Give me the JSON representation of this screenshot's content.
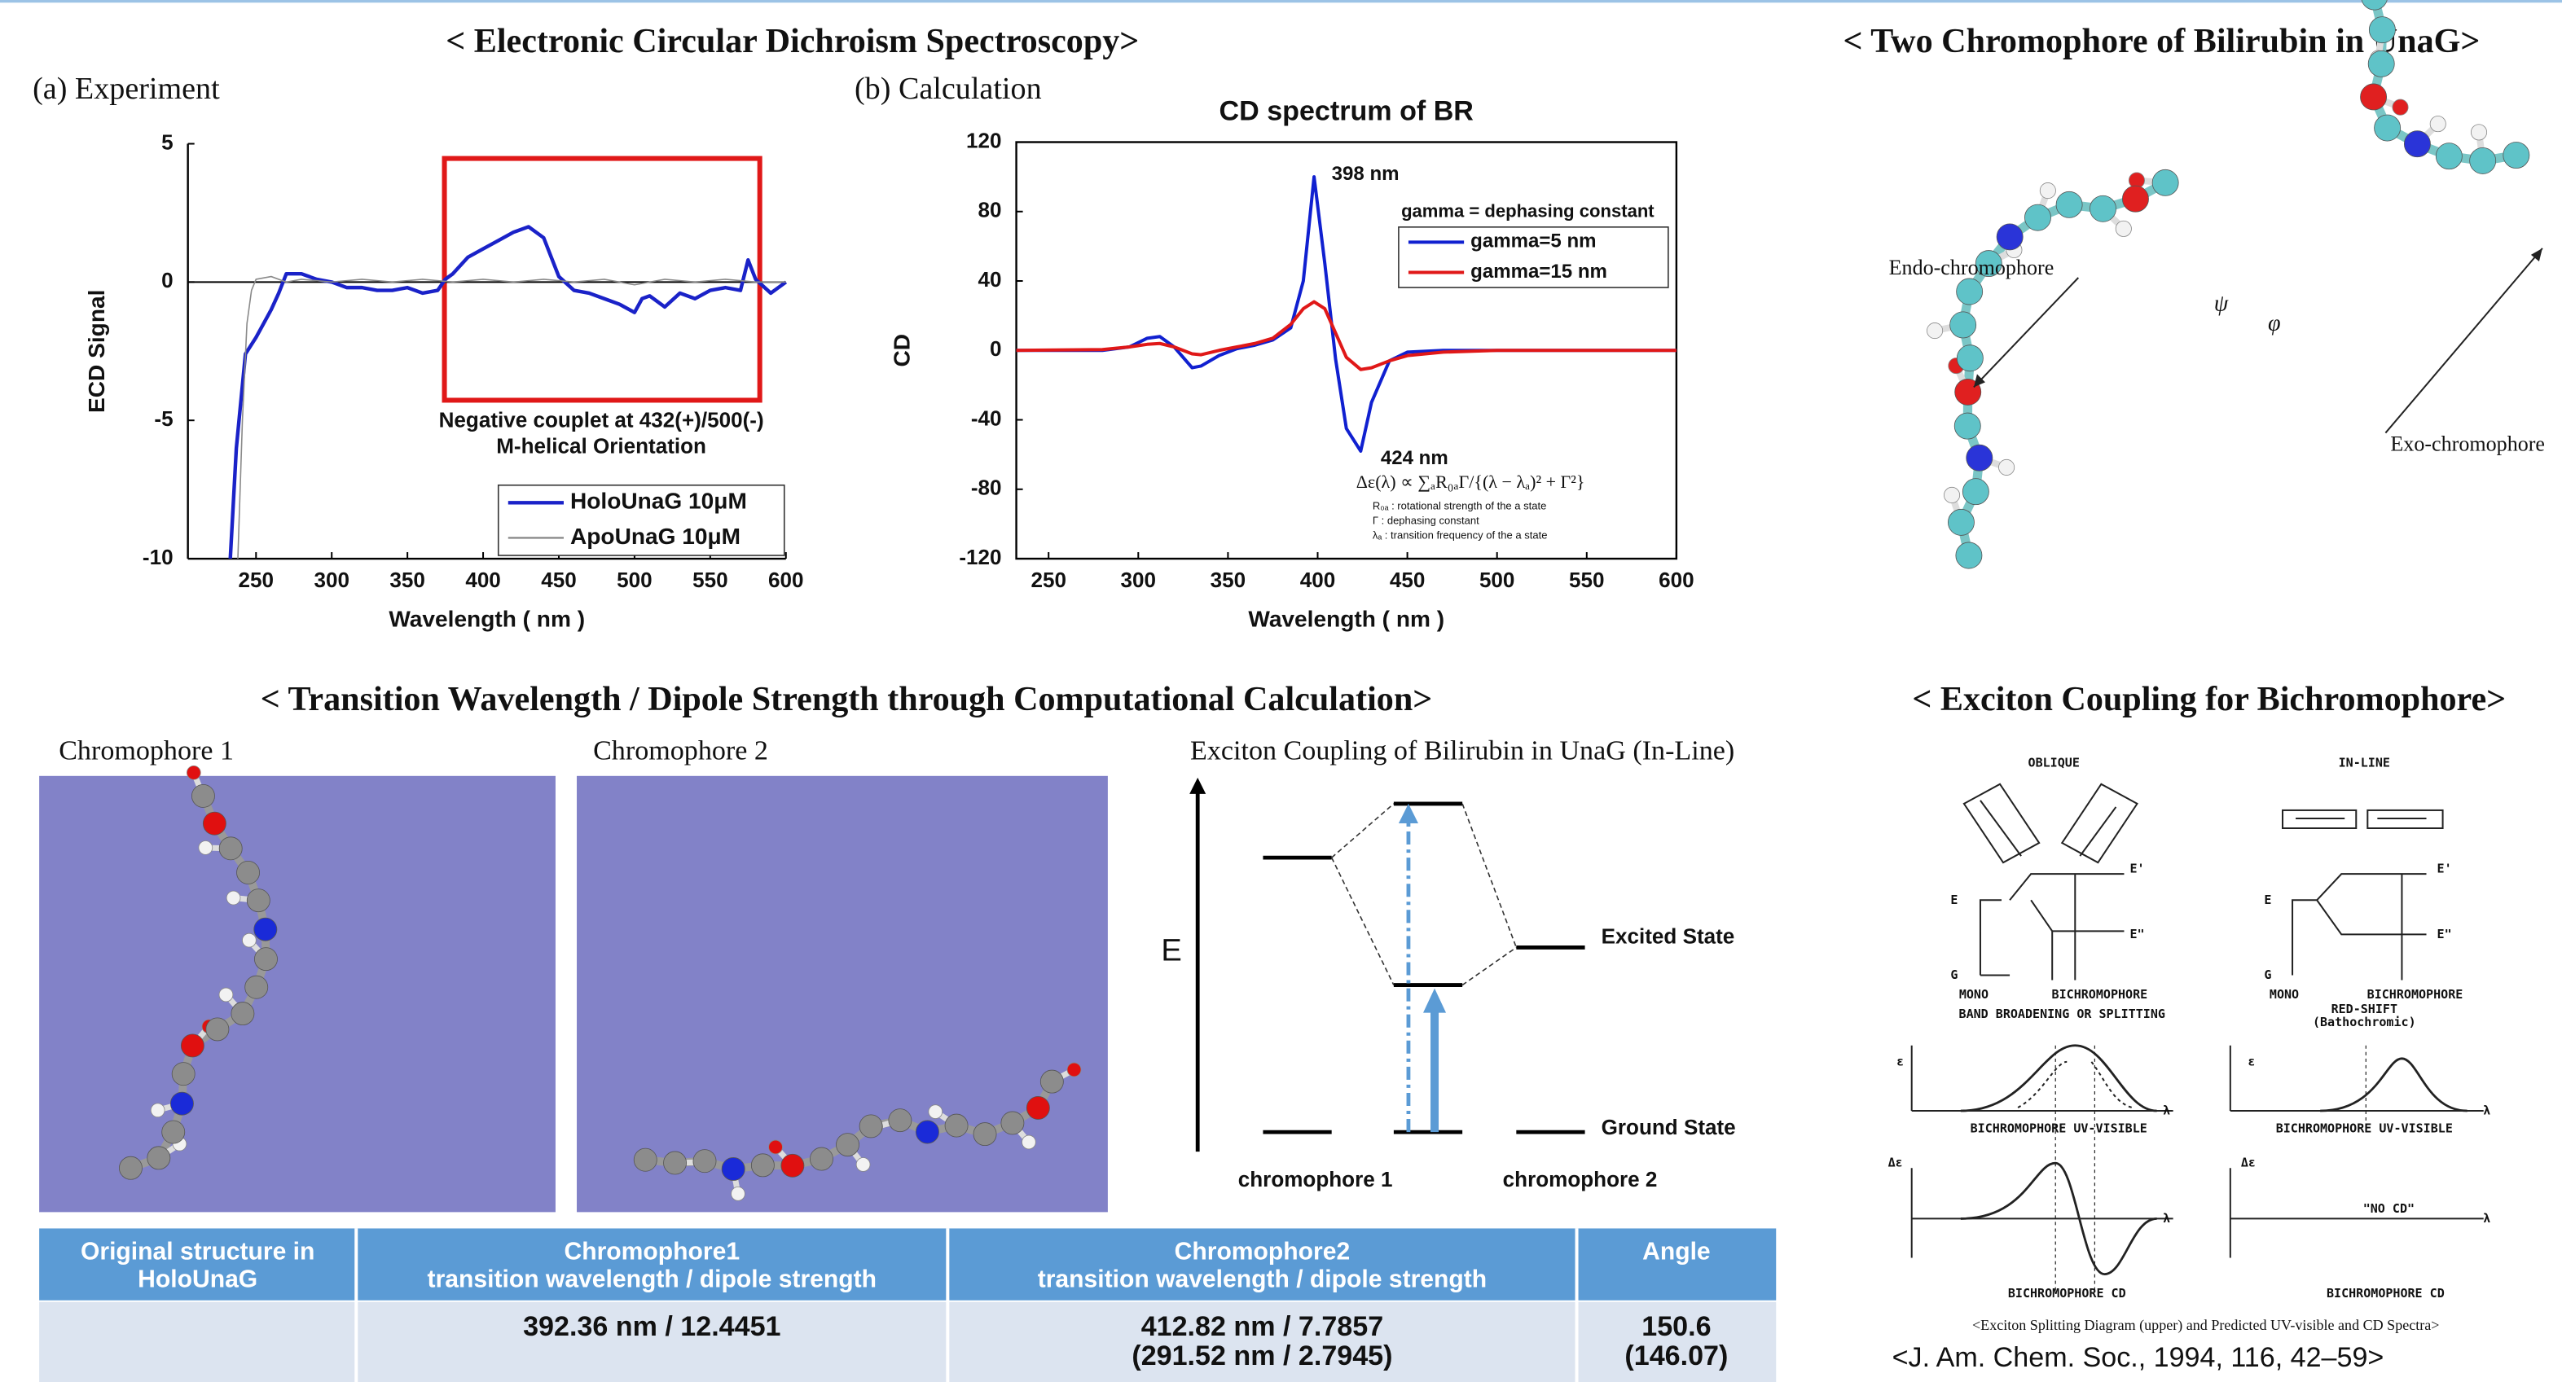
{
  "ecd": {
    "title": "< Electronic Circular Dichroism Spectroscopy>",
    "panel_a": "(a) Experiment",
    "panel_b": "(b) Calculation"
  },
  "chart_data": [
    {
      "type": "line",
      "xlabel": "Wavelength ( nm )",
      "ylabel": "ECD Signal",
      "xlim": [
        205,
        600
      ],
      "ylim": [
        -10,
        5
      ],
      "xticks": [
        250,
        300,
        350,
        400,
        450,
        500,
        550,
        600
      ],
      "yticks": [
        -10,
        -5,
        0,
        5
      ],
      "zero_line": true,
      "legend": "lower right",
      "annotations": [
        "Negative couplet at 432(+)/500(-)",
        "M-helical Orientation"
      ],
      "series": [
        {
          "name": "HoloUnaG 10μM",
          "color": "#1a22c8",
          "x": [
            233,
            237,
            243,
            250,
            255,
            260,
            265,
            270,
            280,
            290,
            300,
            310,
            320,
            330,
            340,
            350,
            360,
            370,
            375,
            380,
            390,
            400,
            410,
            420,
            430,
            440,
            445,
            450,
            460,
            470,
            480,
            490,
            500,
            505,
            510,
            520,
            530,
            540,
            550,
            560,
            570,
            575,
            580,
            590,
            600
          ],
          "values": [
            -10,
            -6,
            -2.6,
            -2.0,
            -1.5,
            -1.0,
            -0.4,
            0.3,
            0.3,
            0.1,
            0.0,
            -0.2,
            -0.2,
            -0.3,
            -0.3,
            -0.2,
            -0.4,
            -0.3,
            0.1,
            0.3,
            0.9,
            1.2,
            1.5,
            1.8,
            2.0,
            1.6,
            0.9,
            0.2,
            -0.3,
            -0.4,
            -0.6,
            -0.8,
            -1.1,
            -0.6,
            -0.5,
            -0.9,
            -0.4,
            -0.6,
            -0.3,
            -0.2,
            -0.3,
            0.8,
            0.1,
            -0.4,
            0.0
          ]
        },
        {
          "name": "ApoUnaG 10μM",
          "color": "#8a8a8a",
          "x": [
            238,
            241,
            244,
            247,
            250,
            260,
            270,
            280,
            300,
            320,
            340,
            360,
            380,
            400,
            420,
            440,
            460,
            480,
            500,
            520,
            540,
            560,
            580,
            600
          ],
          "values": [
            -10,
            -5,
            -1.5,
            -0.3,
            0.1,
            0.2,
            0.0,
            0.1,
            0.0,
            0.1,
            0.0,
            0.1,
            0.0,
            0.1,
            0.0,
            0.1,
            0.0,
            0.1,
            -0.1,
            0.1,
            0.0,
            0.1,
            0.0,
            0.0
          ]
        }
      ]
    },
    {
      "type": "line",
      "title": "CD spectrum of BR",
      "xlabel": "Wavelength ( nm )",
      "ylabel": "CD",
      "xlim": [
        232,
        600
      ],
      "ylim": [
        -120,
        120
      ],
      "xticks": [
        250,
        300,
        350,
        400,
        450,
        500,
        550,
        600
      ],
      "yticks": [
        -120,
        -80,
        -40,
        0,
        40,
        80,
        120
      ],
      "legend": "upper right",
      "legend_title": "gamma = dephasing constant",
      "annotations": [
        "398 nm",
        "424 nm"
      ],
      "formula": "Δε(λ) ∝ ∑ₐR₀ₐΓ/{(λ − λₐ)² + Γ²}",
      "notes": [
        "R₀ₐ : rotational strength of the a state",
        "Γ : dephasing constant",
        "λₐ : transition frequency of the a state"
      ],
      "series": [
        {
          "name": "gamma=5 nm",
          "color": "#1020d0",
          "x": [
            232,
            280,
            295,
            305,
            312,
            320,
            330,
            335,
            345,
            355,
            365,
            375,
            385,
            392,
            398,
            404,
            410,
            416,
            424,
            430,
            440,
            450,
            470,
            500,
            600
          ],
          "values": [
            0,
            0,
            2,
            7,
            8,
            2,
            -10,
            -9,
            -3,
            1,
            3,
            6,
            13,
            40,
            100,
            50,
            -5,
            -45,
            -58,
            -30,
            -6,
            -1,
            0,
            0,
            0
          ]
        },
        {
          "name": "gamma=15 nm",
          "color": "#e01818",
          "x": [
            232,
            280,
            295,
            305,
            312,
            320,
            330,
            335,
            345,
            355,
            365,
            375,
            385,
            392,
            398,
            404,
            410,
            416,
            424,
            430,
            440,
            450,
            470,
            500,
            600
          ],
          "values": [
            0,
            0.5,
            2,
            3.5,
            4,
            2,
            -2,
            -2.5,
            0,
            2,
            4,
            7,
            15,
            24,
            28,
            24,
            10,
            -4,
            -11,
            -10,
            -6,
            -3,
            -1,
            0,
            0
          ]
        }
      ]
    }
  ],
  "bilirubin": {
    "title": "< Two Chromophore of Bilirubin in UnaG>",
    "endo": "Endo-chromophore",
    "exo": "Exo-chromophore",
    "psi": "ψ",
    "phi": "φ"
  },
  "transition": {
    "title": "< Transition Wavelength / Dipole Strength through Computational Calculation>",
    "chromophore_1": "Chromophore 1",
    "chromophore_2": "Chromophore 2",
    "exciton_title": "Exciton Coupling of Bilirubin in UnaG (In-Line)",
    "energy_axis": "E",
    "excited_state": "Excited State",
    "ground_state": "Ground State",
    "level_1": "chromophore 1",
    "level_2": "chromophore 2"
  },
  "table": {
    "header": [
      [
        "Original structure in",
        "HoloUnaG"
      ],
      [
        "Chromophore1",
        "transition wavelength / dipole strength"
      ],
      [
        "Chromophore2",
        "transition wavelength / dipole strength"
      ],
      [
        "Angle"
      ]
    ],
    "rows": [
      [
        null,
        [
          "392.36 nm / 12.4451"
        ],
        [
          "412.82 nm / 7.7857",
          "(291.52 nm / 2.7945)"
        ],
        [
          "150.6",
          "(146.07)"
        ]
      ]
    ]
  },
  "exciton_fig": {
    "title": "< Exciton Coupling for Bichromophore>",
    "labels": [
      "OBLIQUE",
      "IN-LINE",
      "MONO",
      "BICHROMOPHORE",
      "BAND BROADENING OR SPLITTING",
      "MONO",
      "BICHROMOPHORE",
      "RED-SHIFT",
      "(Bathochromic)",
      "BICHROMOPHORE UV-VISIBLE",
      "BICHROMOPHORE UV-VISIBLE",
      "BICHROMOPHORE CD",
      "BICHROMOPHORE CD",
      "\"NO CD\"",
      "E",
      "G",
      "E",
      "G",
      "E'",
      "E\"",
      "E'",
      "E\"",
      "ε",
      "Δε",
      "λ",
      "λ",
      "λ",
      "λ",
      "ε",
      "Δε"
    ],
    "caption": "<Exciton Splitting Diagram (upper) and Predicted UV-visible and CD Spectra>",
    "reference": "<J. Am. Chem. Soc., 1994, 116, 42–59>"
  }
}
